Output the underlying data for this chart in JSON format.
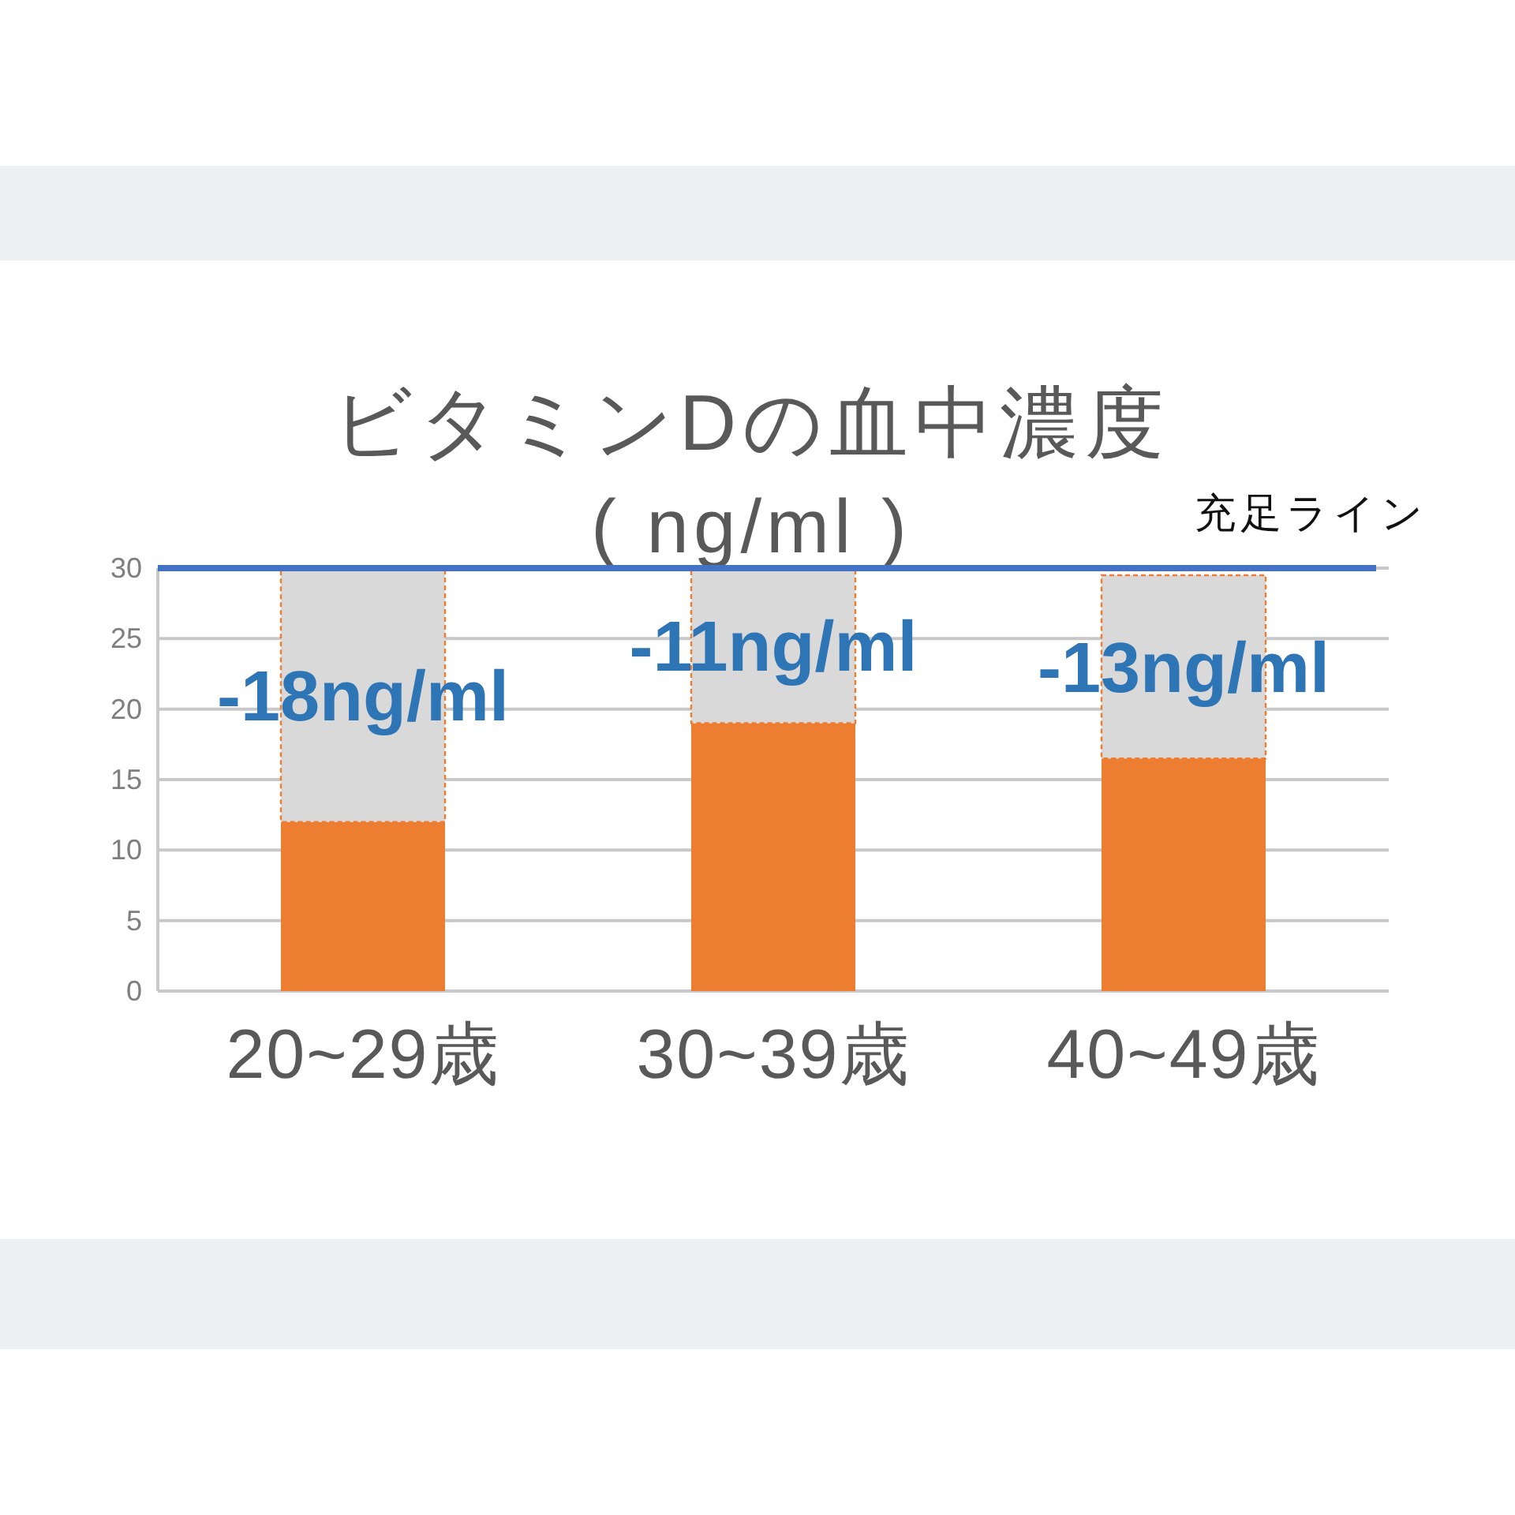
{
  "chart_data": {
    "type": "bar",
    "title": "ビタミンDの血中濃度",
    "subtitle": "( ng/ml )",
    "categories": [
      "20~29歳",
      "30~39歳",
      "40~49歳"
    ],
    "stacked": true,
    "series": [
      {
        "color": "#ed7d31",
        "values": [
          12,
          19,
          16.5
        ]
      },
      {
        "color": "#d9d9d9",
        "values": [
          18,
          11,
          13
        ]
      }
    ],
    "ylim": [
      0,
      30
    ],
    "yticks": [
      0,
      5,
      10,
      15,
      20,
      25,
      30
    ],
    "grid": "y",
    "ref_lines": [
      {
        "axis": "y",
        "value": 30,
        "label": "充足ライン",
        "color": "#4472c4"
      }
    ],
    "annotations": [
      {
        "text": "-18ng/ml",
        "x": "20~29歳",
        "y": 12
      },
      {
        "text": "-11ng/ml",
        "x": "30~39歳",
        "y": 19
      },
      {
        "text": "-13ng/ml",
        "x": "40~49歳",
        "y": 16.5
      }
    ]
  }
}
